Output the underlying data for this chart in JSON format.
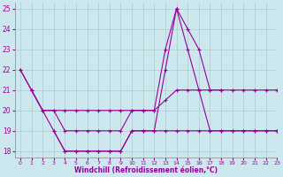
{
  "background_color": "#cce8ee",
  "grid_color": "#aacccc",
  "line_color": "#990099",
  "xlabel": "Windchill (Refroidissement éolien,°C)",
  "xlim": [
    -0.5,
    23
  ],
  "ylim": [
    17.7,
    25.3
  ],
  "yticks": [
    18,
    19,
    20,
    21,
    22,
    23,
    24,
    25
  ],
  "xticks": [
    0,
    1,
    2,
    3,
    4,
    5,
    6,
    7,
    8,
    9,
    10,
    11,
    12,
    13,
    14,
    15,
    16,
    17,
    18,
    19,
    20,
    21,
    22,
    23
  ],
  "series": [
    {
      "x": [
        0,
        1,
        2,
        3,
        4,
        5,
        6,
        7,
        8,
        9,
        10,
        11,
        12,
        13,
        14,
        15,
        16,
        17,
        18,
        19,
        20,
        21,
        22,
        23
      ],
      "y": [
        22,
        21,
        20,
        19,
        18,
        18,
        18,
        18,
        18,
        18,
        19,
        19,
        19,
        22,
        25,
        23,
        21,
        19,
        19,
        19,
        19,
        19,
        19,
        19
      ]
    },
    {
      "x": [
        1,
        2,
        3,
        4,
        5,
        6,
        7,
        8,
        9,
        10,
        11,
        12,
        13,
        14,
        15,
        16,
        17,
        18
      ],
      "y": [
        21,
        20,
        20,
        19,
        19,
        19,
        19,
        19,
        19,
        20,
        20,
        20,
        23,
        25,
        24,
        23,
        21,
        21
      ]
    },
    {
      "x": [
        0,
        1,
        2,
        3,
        4,
        5,
        6,
        7,
        8,
        9,
        10,
        11,
        12,
        13,
        14,
        15,
        16,
        17,
        18,
        19,
        20,
        21,
        22,
        23
      ],
      "y": [
        22,
        21,
        20,
        20,
        20,
        20,
        20,
        20,
        20,
        20,
        20,
        20,
        20,
        20.5,
        21,
        21,
        21,
        21,
        21,
        21,
        21,
        21,
        21,
        21
      ]
    },
    {
      "x": [
        3,
        4,
        5,
        6,
        7,
        8,
        9,
        10,
        11,
        12,
        13,
        14,
        15,
        16,
        17,
        18,
        19,
        20,
        21,
        22,
        23
      ],
      "y": [
        19,
        18,
        18,
        18,
        18,
        18,
        18,
        19,
        19,
        19,
        19,
        19,
        19,
        19,
        19,
        19,
        19,
        19,
        19,
        19,
        19
      ]
    }
  ]
}
